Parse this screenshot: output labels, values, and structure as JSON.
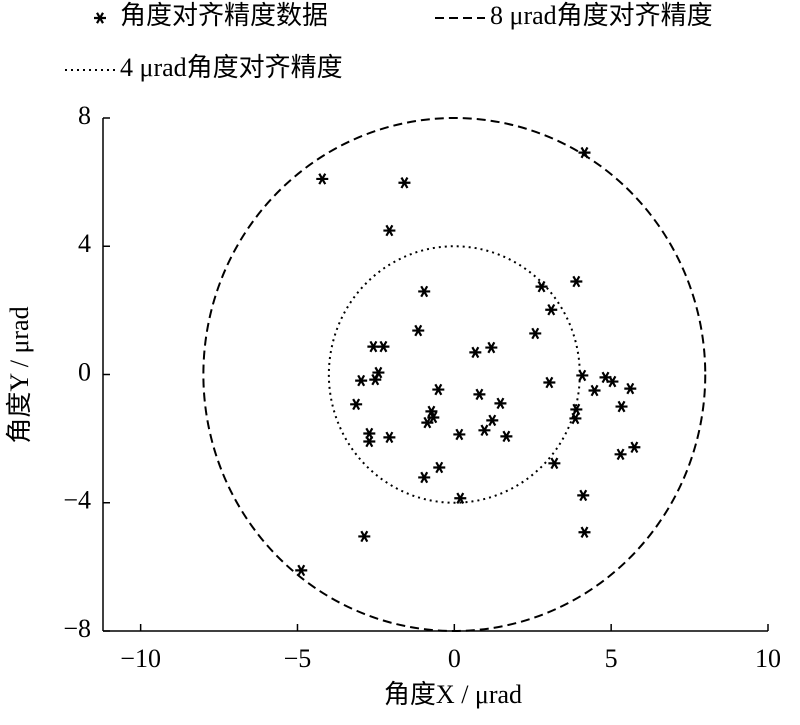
{
  "chart_data": {
    "type": "scatter",
    "xlabel": "角度X / μrad",
    "ylabel": "角度Y / μrad",
    "xlim": [
      -11.2,
      10
    ],
    "ylim": [
      -8,
      8
    ],
    "xticks": [
      {
        "value": -10,
        "label": "−10"
      },
      {
        "value": -5,
        "label": "−5"
      },
      0,
      5,
      10
    ],
    "yticks": [
      {
        "value": -8,
        "label": "−8"
      },
      {
        "value": -4,
        "label": "−4"
      },
      0,
      4,
      8
    ],
    "series": [
      {
        "name": "角度对齐精度数据",
        "type": "scatter",
        "color": "#000000",
        "x": [
          4.15,
          -4.21,
          -1.59,
          -2.07,
          -0.96,
          3.89,
          2.78,
          3.09,
          2.58,
          -1.15,
          1.18,
          0.67,
          -2.58,
          -2.26,
          -2.42,
          -2.52,
          -2.97,
          4.08,
          4.82,
          5.04,
          5.61,
          4.47,
          3.03,
          -0.51,
          0.8,
          -3.13,
          1.47,
          5.33,
          3.89,
          3.86,
          -0.73,
          -0.67,
          -0.86,
          1.21,
          0.96,
          -2.71,
          -2.07,
          0.16,
          1.66,
          -2.71,
          5.74,
          5.3,
          3.19,
          -0.48,
          -0.96,
          0.19,
          4.11,
          4.15,
          -2.87,
          -4.88
        ],
        "values": [
          6.92,
          6.1,
          5.98,
          4.49,
          2.59,
          2.9,
          2.74,
          2.02,
          1.28,
          1.37,
          0.84,
          0.69,
          0.87,
          0.87,
          0.06,
          -0.16,
          -0.19,
          -0.03,
          -0.09,
          -0.22,
          -0.44,
          -0.5,
          -0.25,
          -0.47,
          -0.62,
          -0.93,
          -0.9,
          -1.0,
          -1.09,
          -1.37,
          -1.15,
          -1.34,
          -1.5,
          -1.43,
          -1.74,
          -1.84,
          -1.96,
          -1.87,
          -1.93,
          -2.09,
          -2.27,
          -2.49,
          -2.77,
          -2.9,
          -3.21,
          -3.86,
          -3.77,
          -4.92,
          -5.05,
          -6.11
        ]
      },
      {
        "name": "8 μrad角度对齐精度",
        "type": "circle",
        "radius": 8,
        "color": "#000000",
        "dash": "dashed"
      },
      {
        "name": "4 μrad角度对齐精度",
        "type": "circle",
        "radius": 4,
        "color": "#000000",
        "dash": "dotted"
      }
    ]
  }
}
